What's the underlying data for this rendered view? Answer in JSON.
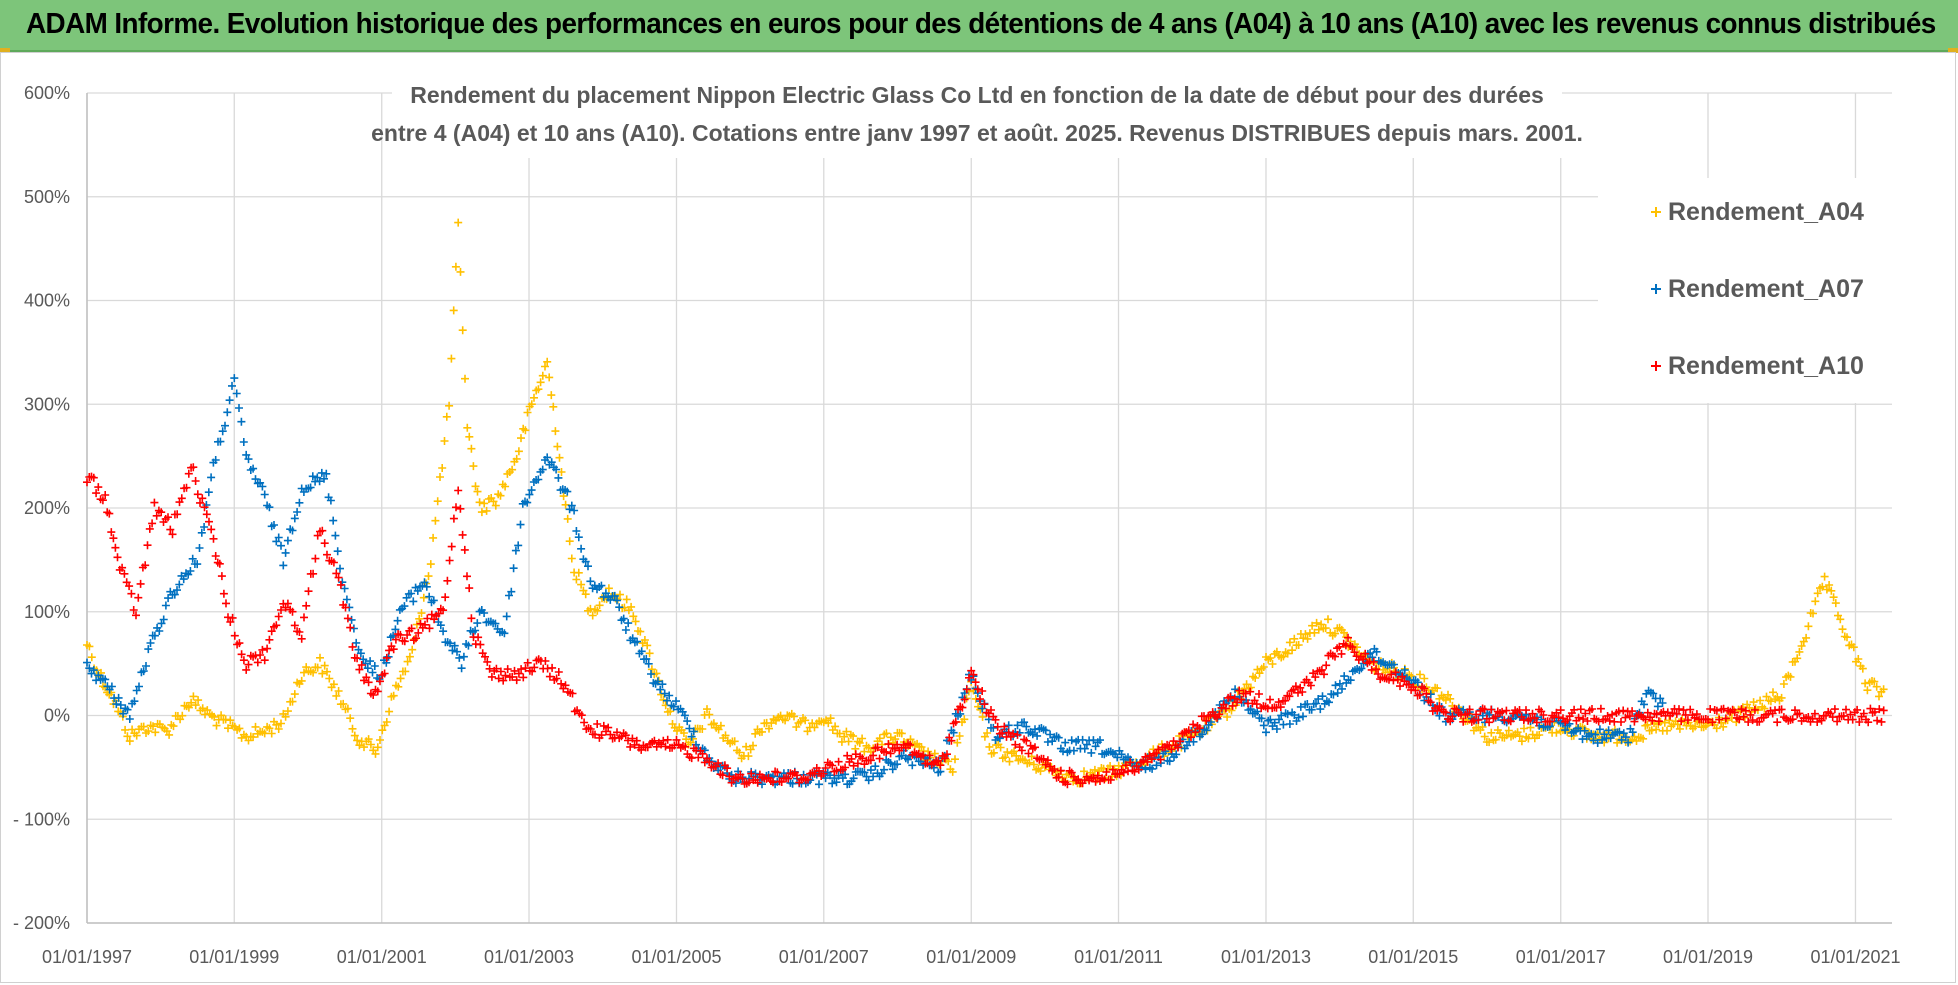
{
  "header": {
    "title": "ADAM Informe. Evolution historique des performances en euros pour des détentions de 4 ans (A04) à 10 ans (A10) avec les revenus connus distribués"
  },
  "colors": {
    "banner": "#7dc57a",
    "A04": "#ffc000",
    "A07": "#0070c0",
    "A10": "#ff0000",
    "grid": "#d9d9d9",
    "text": "#595959"
  },
  "chart_data": {
    "type": "scatter",
    "title_lines": [
      "Rendement du placement Nippon Electric Glass Co Ltd en fonction de la date de début pour des durées",
      "entre 4 (A04) et 10 ans (A10). Cotations entre janv 1997 et août. 2025. Revenus DISTRIBUES depuis mars. 2001."
    ],
    "xlabel": "",
    "ylabel": "",
    "x_ticks": [
      "01/01/1997",
      "01/01/1999",
      "01/01/2001",
      "01/01/2003",
      "01/01/2005",
      "01/01/2007",
      "01/01/2009",
      "01/01/2011",
      "01/01/2013",
      "01/01/2015",
      "01/01/2017",
      "01/01/2019",
      "01/01/2021"
    ],
    "y_ticks": [
      "600%",
      "500%",
      "400%",
      "300%",
      "200%",
      "100%",
      "0%",
      "- 100%",
      "- 200%"
    ],
    "xlim": [
      "1997-01-01",
      "2021-07-01"
    ],
    "ylim": [
      -200,
      600
    ],
    "y_unit": "%",
    "grid": true,
    "legend_position": "right",
    "marker": "plus",
    "series": [
      {
        "name": "Rendement_A04",
        "points": [
          [
            "1997-01-01",
            70
          ],
          [
            "1997-03-01",
            40
          ],
          [
            "1997-05-01",
            20
          ],
          [
            "1997-08-01",
            -20
          ],
          [
            "1997-11-01",
            -10
          ],
          [
            "1998-02-01",
            -15
          ],
          [
            "1998-06-01",
            15
          ],
          [
            "1998-09-01",
            0
          ],
          [
            "1998-12-01",
            -10
          ],
          [
            "1999-03-01",
            -20
          ],
          [
            "1999-06-01",
            -15
          ],
          [
            "1999-09-01",
            -5
          ],
          [
            "1999-12-01",
            40
          ],
          [
            "2000-03-01",
            50
          ],
          [
            "2000-06-01",
            20
          ],
          [
            "2000-09-01",
            -20
          ],
          [
            "2000-12-01",
            -35
          ],
          [
            "2001-03-01",
            20
          ],
          [
            "2001-06-01",
            60
          ],
          [
            "2001-09-01",
            150
          ],
          [
            "2001-12-01",
            300
          ],
          [
            "2002-01-15",
            470
          ],
          [
            "2002-03-01",
            280
          ],
          [
            "2002-05-01",
            200
          ],
          [
            "2002-08-01",
            210
          ],
          [
            "2002-11-01",
            250
          ],
          [
            "2003-01-15",
            300
          ],
          [
            "2003-04-01",
            340
          ],
          [
            "2003-06-01",
            250
          ],
          [
            "2003-08-01",
            150
          ],
          [
            "2003-11-01",
            100
          ],
          [
            "2004-02-01",
            120
          ],
          [
            "2004-06-01",
            100
          ],
          [
            "2004-09-01",
            50
          ],
          [
            "2004-12-01",
            0
          ],
          [
            "2005-03-01",
            -30
          ],
          [
            "2005-06-01",
            0
          ],
          [
            "2005-09-01",
            -20
          ],
          [
            "2005-12-01",
            -40
          ],
          [
            "2006-03-01",
            -10
          ],
          [
            "2006-06-01",
            0
          ],
          [
            "2006-10-01",
            -10
          ],
          [
            "2007-01-01",
            0
          ],
          [
            "2007-04-01",
            -20
          ],
          [
            "2007-08-01",
            -30
          ],
          [
            "2008-01-01",
            -20
          ],
          [
            "2008-06-01",
            -40
          ],
          [
            "2008-10-01",
            -50
          ],
          [
            "2009-01-01",
            30
          ],
          [
            "2009-04-01",
            -30
          ],
          [
            "2009-08-01",
            -40
          ],
          [
            "2010-01-01",
            -50
          ],
          [
            "2010-06-01",
            -60
          ],
          [
            "2010-12-01",
            -55
          ],
          [
            "2011-06-01",
            -40
          ],
          [
            "2012-01-01",
            -20
          ],
          [
            "2012-06-01",
            0
          ],
          [
            "2013-01-01",
            50
          ],
          [
            "2013-06-01",
            70
          ],
          [
            "2013-10-01",
            90
          ],
          [
            "2014-01-01",
            80
          ],
          [
            "2014-06-01",
            50
          ],
          [
            "2014-12-01",
            40
          ],
          [
            "2015-06-01",
            20
          ],
          [
            "2016-01-01",
            -20
          ],
          [
            "2016-06-01",
            -20
          ],
          [
            "2017-01-01",
            -10
          ],
          [
            "2017-06-01",
            -20
          ],
          [
            "2018-01-01",
            -20
          ],
          [
            "2018-06-01",
            -10
          ],
          [
            "2019-01-01",
            -10
          ],
          [
            "2019-06-01",
            0
          ],
          [
            "2020-01-01",
            20
          ],
          [
            "2020-05-01",
            80
          ],
          [
            "2020-08-01",
            130
          ],
          [
            "2020-12-01",
            70
          ],
          [
            "2021-03-01",
            30
          ],
          [
            "2021-06-01",
            20
          ]
        ]
      },
      {
        "name": "Rendement_A07",
        "points": [
          [
            "1997-01-01",
            50
          ],
          [
            "1997-04-01",
            30
          ],
          [
            "1997-08-01",
            0
          ],
          [
            "1997-11-01",
            60
          ],
          [
            "1998-03-01",
            120
          ],
          [
            "1998-07-01",
            150
          ],
          [
            "1998-10-01",
            250
          ],
          [
            "1999-01-01",
            320
          ],
          [
            "1999-03-01",
            250
          ],
          [
            "1999-06-01",
            210
          ],
          [
            "1999-09-01",
            150
          ],
          [
            "1999-12-01",
            220
          ],
          [
            "2000-04-01",
            230
          ],
          [
            "2000-07-01",
            120
          ],
          [
            "2000-10-01",
            50
          ],
          [
            "2001-01-01",
            40
          ],
          [
            "2001-04-01",
            100
          ],
          [
            "2001-08-01",
            130
          ],
          [
            "2001-11-01",
            80
          ],
          [
            "2002-02-01",
            50
          ],
          [
            "2002-05-01",
            100
          ],
          [
            "2002-09-01",
            80
          ],
          [
            "2002-12-01",
            200
          ],
          [
            "2003-04-01",
            250
          ],
          [
            "2003-08-01",
            200
          ],
          [
            "2003-11-01",
            130
          ],
          [
            "2004-03-01",
            110
          ],
          [
            "2004-07-01",
            60
          ],
          [
            "2004-10-01",
            30
          ],
          [
            "2005-02-01",
            0
          ],
          [
            "2005-06-01",
            -40
          ],
          [
            "2005-10-01",
            -60
          ],
          [
            "2006-03-01",
            -60
          ],
          [
            "2006-09-01",
            -60
          ],
          [
            "2007-02-01",
            -60
          ],
          [
            "2007-08-01",
            -60
          ],
          [
            "2008-02-01",
            -40
          ],
          [
            "2008-08-01",
            -50
          ],
          [
            "2009-01-01",
            40
          ],
          [
            "2009-05-01",
            -20
          ],
          [
            "2009-10-01",
            -10
          ],
          [
            "2010-04-01",
            -30
          ],
          [
            "2010-10-01",
            -30
          ],
          [
            "2011-04-01",
            -50
          ],
          [
            "2011-09-01",
            -40
          ],
          [
            "2012-03-01",
            -10
          ],
          [
            "2012-08-01",
            20
          ],
          [
            "2013-01-01",
            -10
          ],
          [
            "2013-06-01",
            0
          ],
          [
            "2013-12-01",
            20
          ],
          [
            "2014-06-01",
            60
          ],
          [
            "2014-12-01",
            40
          ],
          [
            "2015-06-01",
            0
          ],
          [
            "2015-12-01",
            0
          ],
          [
            "2016-06-01",
            0
          ],
          [
            "2017-01-01",
            -10
          ],
          [
            "2017-06-01",
            -20
          ],
          [
            "2017-12-01",
            -20
          ],
          [
            "2018-03-01",
            20
          ],
          [
            "2018-06-01",
            10
          ]
        ]
      },
      {
        "name": "Rendement_A10",
        "points": [
          [
            "1997-01-01",
            230
          ],
          [
            "1997-04-01",
            210
          ],
          [
            "1997-06-01",
            150
          ],
          [
            "1997-09-01",
            100
          ],
          [
            "1997-12-01",
            200
          ],
          [
            "1998-03-01",
            180
          ],
          [
            "1998-06-01",
            240
          ],
          [
            "1998-10-01",
            160
          ],
          [
            "1998-12-01",
            100
          ],
          [
            "1999-03-01",
            50
          ],
          [
            "1999-06-01",
            60
          ],
          [
            "1999-09-01",
            110
          ],
          [
            "1999-12-01",
            80
          ],
          [
            "2000-03-01",
            180
          ],
          [
            "2000-06-01",
            130
          ],
          [
            "2000-09-01",
            50
          ],
          [
            "2000-12-01",
            20
          ],
          [
            "2001-03-01",
            70
          ],
          [
            "2001-07-01",
            80
          ],
          [
            "2001-11-01",
            100
          ],
          [
            "2002-01-15",
            220
          ],
          [
            "2002-04-01",
            80
          ],
          [
            "2002-07-01",
            40
          ],
          [
            "2002-11-01",
            40
          ],
          [
            "2003-03-01",
            50
          ],
          [
            "2003-07-01",
            30
          ],
          [
            "2003-10-01",
            -10
          ],
          [
            "2004-03-01",
            -20
          ],
          [
            "2004-08-01",
            -30
          ],
          [
            "2005-01-01",
            -30
          ],
          [
            "2005-06-01",
            -40
          ],
          [
            "2005-10-01",
            -60
          ],
          [
            "2006-03-01",
            -60
          ],
          [
            "2006-09-01",
            -60
          ],
          [
            "2007-02-01",
            -50
          ],
          [
            "2007-08-01",
            -40
          ],
          [
            "2008-02-01",
            -30
          ],
          [
            "2008-08-01",
            -50
          ],
          [
            "2009-01-01",
            40
          ],
          [
            "2009-05-01",
            -10
          ],
          [
            "2009-10-01",
            -30
          ],
          [
            "2010-04-01",
            -60
          ],
          [
            "2010-10-01",
            -60
          ],
          [
            "2011-04-01",
            -50
          ],
          [
            "2011-10-01",
            -30
          ],
          [
            "2012-04-01",
            0
          ],
          [
            "2012-09-01",
            20
          ],
          [
            "2013-02-01",
            10
          ],
          [
            "2013-08-01",
            30
          ],
          [
            "2014-02-01",
            70
          ],
          [
            "2014-08-01",
            40
          ],
          [
            "2015-01-01",
            30
          ],
          [
            "2015-06-01",
            0
          ],
          [
            "2016-01-01",
            0
          ],
          [
            "2017-01-01",
            0
          ],
          [
            "2018-01-01",
            0
          ],
          [
            "2019-01-01",
            0
          ],
          [
            "2020-01-01",
            0
          ],
          [
            "2021-06-01",
            0
          ]
        ]
      }
    ]
  }
}
